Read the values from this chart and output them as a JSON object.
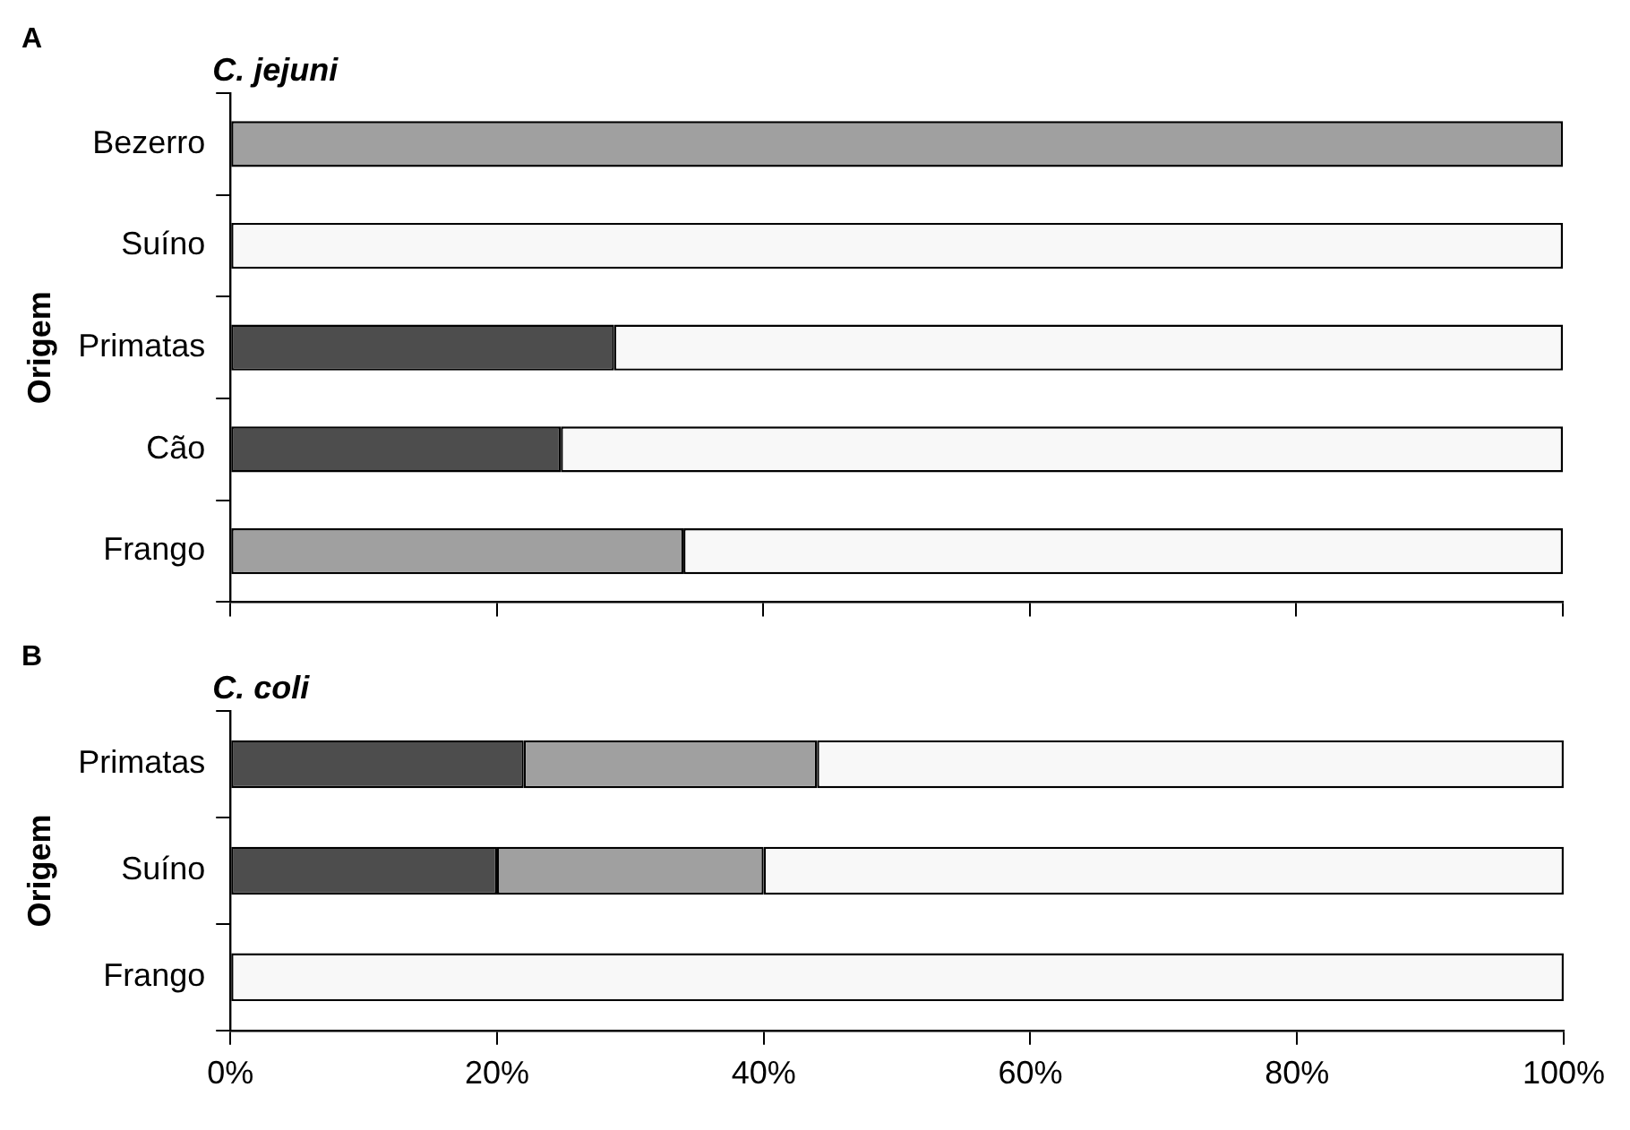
{
  "chart_data": [
    {
      "type": "bar",
      "orientation": "horizontal",
      "stacked": true,
      "title": "C. jejuni",
      "ylabel": "Origem",
      "annotations": [
        "A"
      ],
      "categories": [
        "Bezerro",
        "Suíno",
        "Primatas",
        "Cão",
        "Frango"
      ],
      "series": [
        {
          "color": "#4d4d4d",
          "values": [
            0,
            0,
            28.8,
            24.8,
            0
          ]
        },
        {
          "color": "#a0a0a0",
          "values": [
            100,
            0,
            0,
            0,
            34
          ]
        },
        {
          "color": "#f8f8f8",
          "values": [
            0,
            100,
            71.2,
            75.2,
            66
          ]
        }
      ],
      "xlim": [
        0,
        100
      ],
      "xticks": [
        {
          "value": 0,
          "label": null
        },
        {
          "value": 20,
          "label": null
        },
        {
          "value": 40,
          "label": null
        },
        {
          "value": 60,
          "label": null
        },
        {
          "value": 80,
          "label": null
        },
        {
          "value": 100,
          "label": null
        }
      ],
      "tick_labels": "y",
      "legend": false
    },
    {
      "type": "bar",
      "orientation": "horizontal",
      "stacked": true,
      "title": "C. coli",
      "ylabel": "Origem",
      "annotations": [
        "B"
      ],
      "categories": [
        "Primatas",
        "Suíno",
        "Frango"
      ],
      "series": [
        {
          "color": "#4d4d4d",
          "values": [
            22,
            20,
            0
          ]
        },
        {
          "color": "#a0a0a0",
          "values": [
            22,
            20,
            0
          ]
        },
        {
          "color": "#f8f8f8",
          "values": [
            56,
            60,
            100
          ]
        }
      ],
      "xlim": [
        0,
        100
      ],
      "xticks": [
        {
          "value": 0,
          "label": "0%"
        },
        {
          "value": 20,
          "label": "20%"
        },
        {
          "value": 40,
          "label": "40%"
        },
        {
          "value": 60,
          "label": "60%"
        },
        {
          "value": 80,
          "label": "80%"
        },
        {
          "value": 100,
          "label": "100%"
        }
      ],
      "legend": false
    }
  ]
}
